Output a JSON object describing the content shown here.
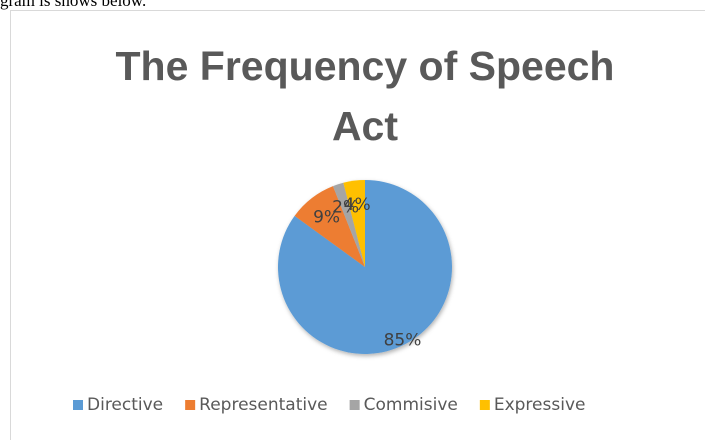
{
  "page_text": "gram is shows below.",
  "chart_data": {
    "type": "pie",
    "title": "The Frequency of Speech Act",
    "categories": [
      "Directive",
      "Representative",
      "Commisive",
      "Expressive"
    ],
    "values": [
      85,
      9,
      2,
      4
    ],
    "value_labels": [
      "85%",
      "9%",
      "2%",
      "4%"
    ],
    "colors": [
      "#5b9bd5",
      "#ed7d31",
      "#a5a5a5",
      "#ffc000"
    ],
    "legend": "bottom"
  }
}
